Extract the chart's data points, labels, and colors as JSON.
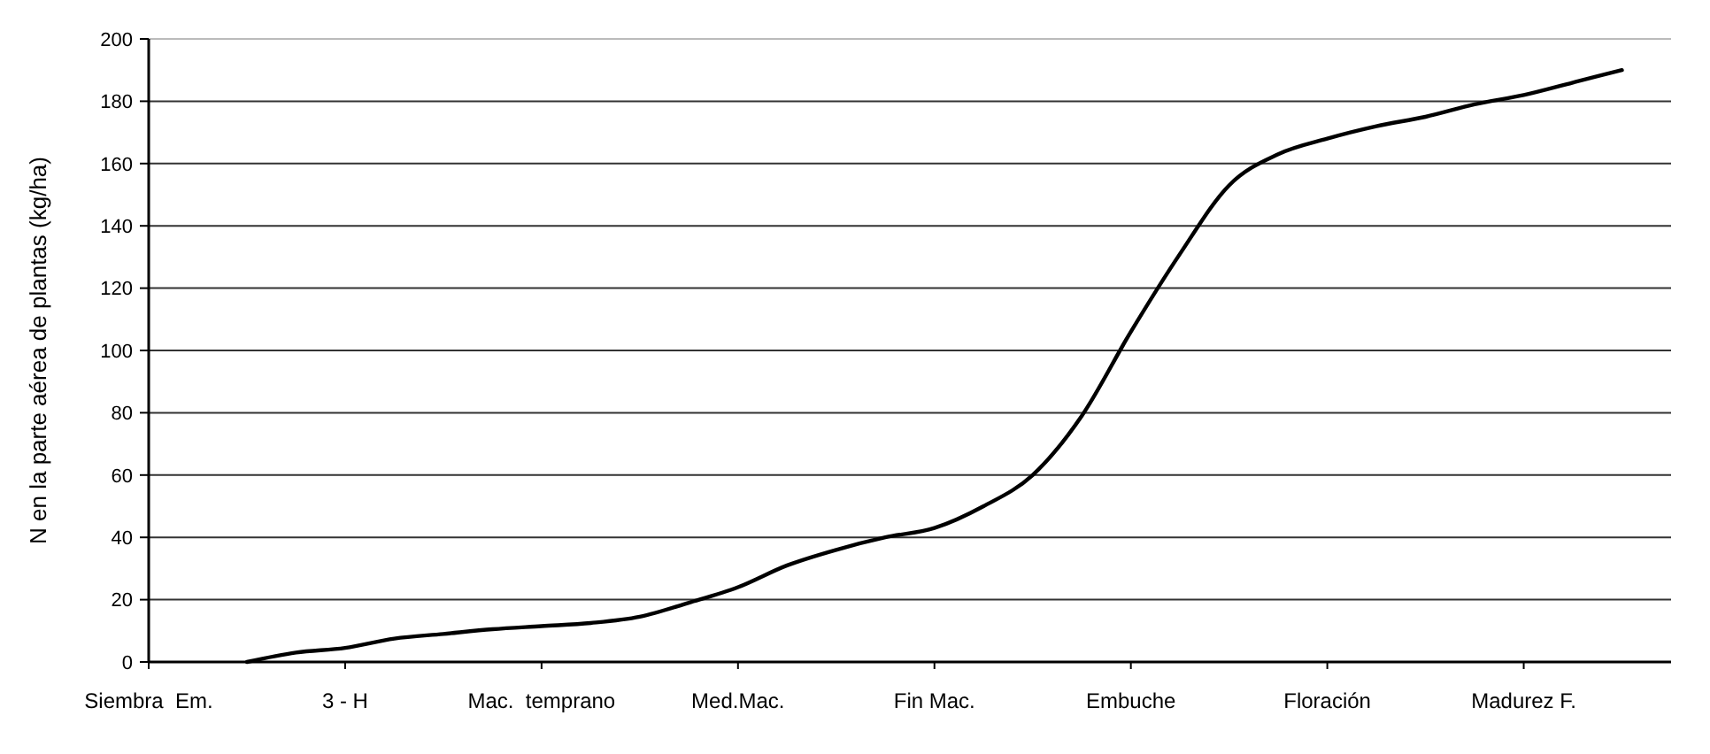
{
  "chart_data": {
    "type": "line",
    "ylabel": "N en la parte aérea de plantas (kg/ha)",
    "categories": [
      "Siembra  Em.",
      null,
      null,
      null,
      "3 - H",
      null,
      null,
      null,
      "Mac.  temprano",
      null,
      null,
      null,
      "Med.Mac.",
      null,
      null,
      null,
      "Fin Mac.",
      null,
      null,
      null,
      "Embuche",
      null,
      null,
      null,
      "Floración",
      null,
      null,
      null,
      "Madurez F.",
      null,
      null,
      null
    ],
    "ylim": [
      0,
      200
    ],
    "yticks": [
      0,
      20,
      40,
      60,
      80,
      100,
      120,
      140,
      160,
      180,
      200
    ],
    "grid": "y",
    "marker": "none",
    "line_style": "solid",
    "series": [
      {
        "color": "#000000",
        "values": [
          null,
          null,
          0,
          3,
          4.5,
          7.5,
          9,
          10.5,
          11.5,
          12.5,
          14.5,
          19,
          24,
          31,
          36,
          40,
          43,
          50,
          60,
          79,
          106,
          131,
          153,
          163,
          168,
          172,
          175,
          179,
          182,
          186,
          190,
          null
        ]
      }
    ]
  }
}
